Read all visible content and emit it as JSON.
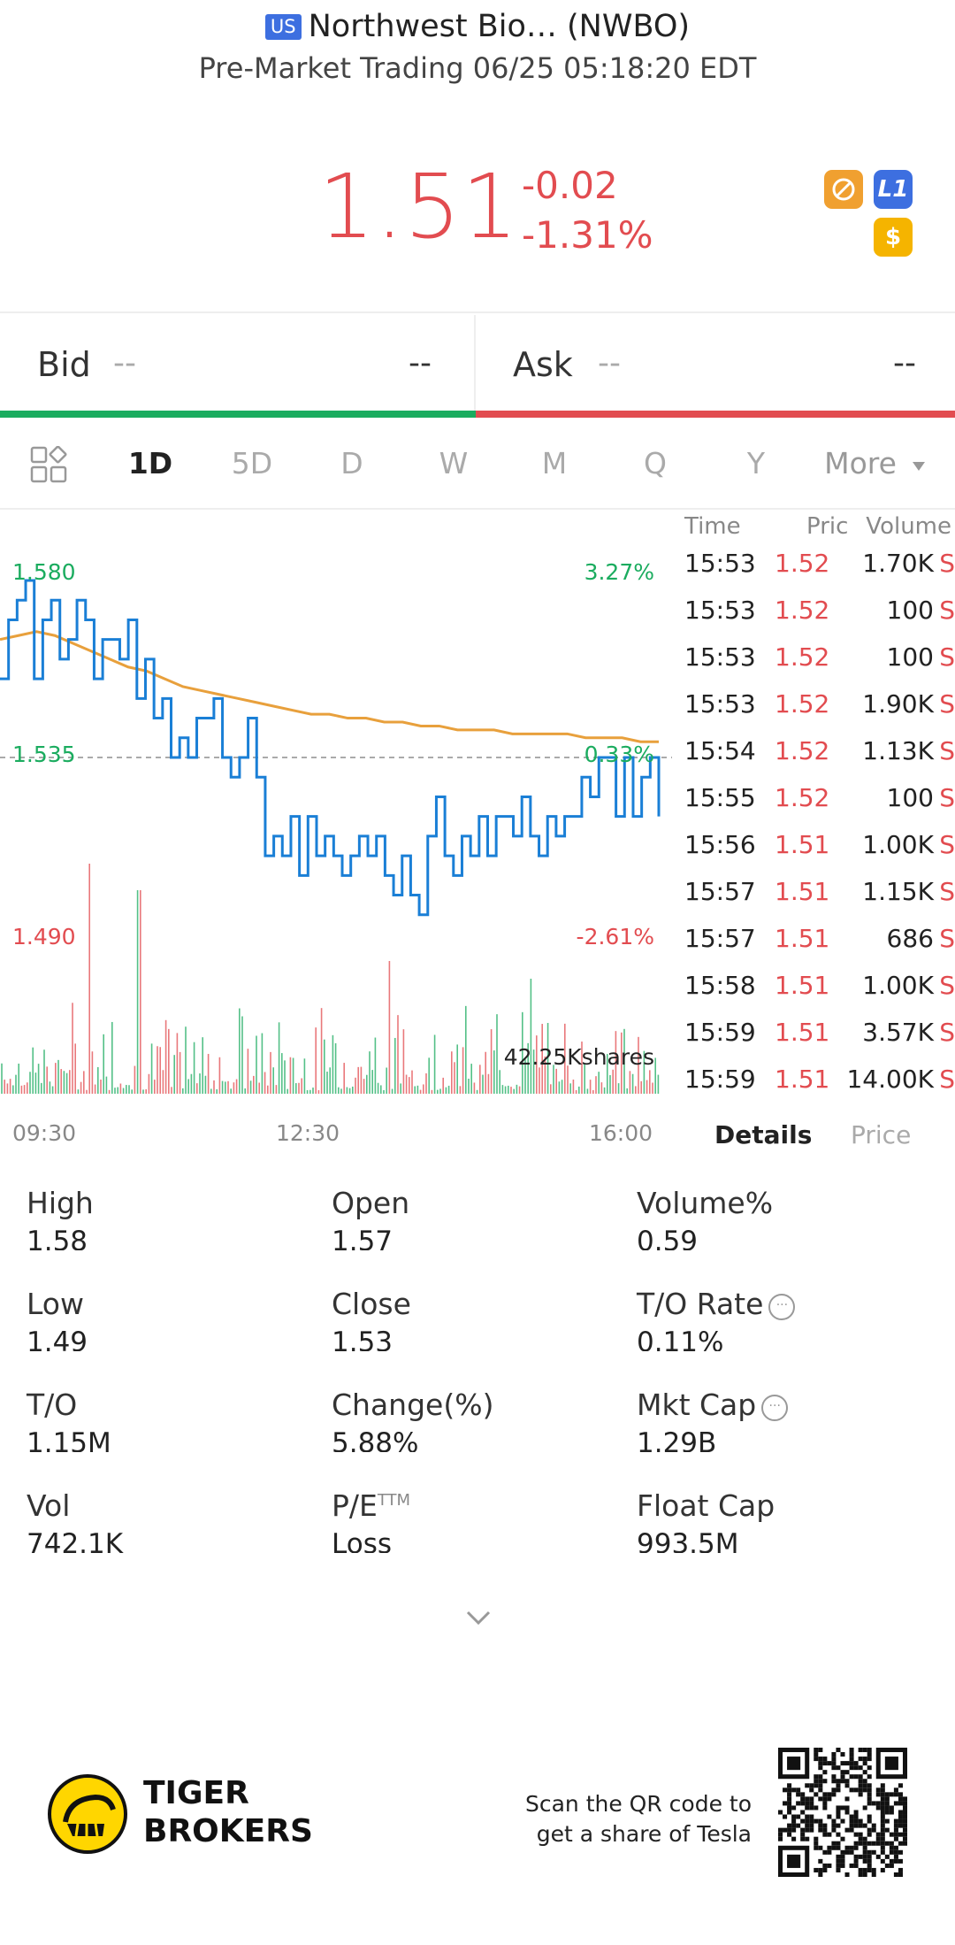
{
  "header": {
    "market_badge": "US",
    "title": "Northwest Bio… (NWBO)",
    "subtitle": "Pre-Market Trading 06/25 05:18:20 EDT"
  },
  "quote": {
    "price": "1.51",
    "change": "-0.02",
    "change_pct": "-1.31%",
    "badges": [
      "no-entry-icon",
      "L1-badge",
      "dollar-icon"
    ],
    "badge_L1": "L1",
    "badge_dollar": "$"
  },
  "bid": {
    "label": "Bid",
    "size": "--",
    "price": "--"
  },
  "ask": {
    "label": "Ask",
    "size": "--",
    "price": "--"
  },
  "periods": {
    "items": [
      "1D",
      "5D",
      "D",
      "W",
      "M",
      "Q",
      "Y"
    ],
    "more": "More",
    "active": "1D"
  },
  "chart": {
    "high_label": "1.580",
    "mid_label": "1.535",
    "low_label": "1.490",
    "high_pct": "3.27%",
    "mid_pct": "0.33%",
    "low_pct": "-2.61%",
    "volume_label": "42.25Kshares",
    "x_ticks": [
      "09:30",
      "12:30",
      "16:00"
    ]
  },
  "chart_data": {
    "type": "line",
    "x_ticks": [
      "09:30",
      "12:30",
      "16:00"
    ],
    "ylim": [
      1.49,
      1.58
    ],
    "reference_price": 1.535,
    "series": [],
    "price_path": [
      1.555,
      1.57,
      1.575,
      1.58,
      1.555,
      1.57,
      1.575,
      1.56,
      1.565,
      1.575,
      1.57,
      1.555,
      1.565,
      1.565,
      1.56,
      1.57,
      1.55,
      1.56,
      1.545,
      1.55,
      1.535,
      1.54,
      1.535,
      1.545,
      1.545,
      1.55,
      1.535,
      1.53,
      1.535,
      1.545,
      1.53,
      1.51,
      1.515,
      1.51,
      1.52,
      1.505,
      1.52,
      1.51,
      1.515,
      1.51,
      1.505,
      1.51,
      1.515,
      1.51,
      1.515,
      1.505,
      1.5,
      1.51,
      1.5,
      1.495,
      1.515,
      1.525,
      1.51,
      1.505,
      1.515,
      1.51,
      1.52,
      1.51,
      1.52,
      1.52,
      1.515,
      1.525,
      1.515,
      1.51,
      1.52,
      1.515,
      1.52,
      1.52,
      1.53,
      1.525,
      1.535,
      1.535,
      1.52,
      1.535,
      1.52,
      1.53,
      1.535,
      1.52
    ],
    "avg_path": [
      1.565,
      1.566,
      1.567,
      1.566,
      1.564,
      1.562,
      1.56,
      1.558,
      1.557,
      1.555,
      1.553,
      1.552,
      1.551,
      1.55,
      1.549,
      1.548,
      1.547,
      1.546,
      1.546,
      1.545,
      1.545,
      1.544,
      1.544,
      1.543,
      1.543,
      1.542,
      1.542,
      1.542,
      1.541,
      1.541,
      1.541,
      1.541,
      1.54,
      1.54,
      1.54,
      1.539,
      1.539
    ]
  },
  "ticks": {
    "headers": {
      "time": "Time",
      "price": "Pric",
      "volume": "Volume"
    },
    "rows": [
      {
        "time": "15:53",
        "price": "1.52",
        "volume": "1.70K",
        "side": "S"
      },
      {
        "time": "15:53",
        "price": "1.52",
        "volume": "100",
        "side": "S"
      },
      {
        "time": "15:53",
        "price": "1.52",
        "volume": "100",
        "side": "S"
      },
      {
        "time": "15:53",
        "price": "1.52",
        "volume": "1.90K",
        "side": "S"
      },
      {
        "time": "15:54",
        "price": "1.52",
        "volume": "1.13K",
        "side": "S"
      },
      {
        "time": "15:55",
        "price": "1.52",
        "volume": "100",
        "side": "S"
      },
      {
        "time": "15:56",
        "price": "1.51",
        "volume": "1.00K",
        "side": "S"
      },
      {
        "time": "15:57",
        "price": "1.51",
        "volume": "1.15K",
        "side": "S"
      },
      {
        "time": "15:57",
        "price": "1.51",
        "volume": "686",
        "side": "S"
      },
      {
        "time": "15:58",
        "price": "1.51",
        "volume": "1.00K",
        "side": "S"
      },
      {
        "time": "15:59",
        "price": "1.51",
        "volume": "3.57K",
        "side": "S"
      },
      {
        "time": "15:59",
        "price": "1.51",
        "volume": "14.00K",
        "side": "S"
      }
    ],
    "tabs": [
      "Details",
      "Price"
    ],
    "active_tab": "Details"
  },
  "stats": [
    {
      "key": "High",
      "value": "1.58"
    },
    {
      "key": "Open",
      "value": "1.57"
    },
    {
      "key": "Volume%",
      "value": "0.59"
    },
    {
      "key": "Low",
      "value": "1.49"
    },
    {
      "key": "Close",
      "value": "1.53"
    },
    {
      "key": "T/O Rate",
      "value": "0.11%",
      "info": true
    },
    {
      "key": "T/O",
      "value": "1.15M"
    },
    {
      "key": "Change(%)",
      "value": "5.88%"
    },
    {
      "key": "Mkt Cap",
      "value": "1.29B",
      "info": true
    },
    {
      "key": "Vol",
      "value": "742.1K"
    },
    {
      "key": "P/E",
      "sup": "TTM",
      "value": "Loss"
    },
    {
      "key": "Float Cap",
      "value": "993.5M"
    }
  ],
  "footer": {
    "brand_line1": "TIGER",
    "brand_line2": "BROKERS",
    "promo_line1": "Scan the QR code to",
    "promo_line2": "get a share of Tesla"
  },
  "colors": {
    "down": "#e24c50",
    "up": "#1bac5f",
    "price_line": "#1a7fd6",
    "avg_line": "#e8a03c"
  }
}
